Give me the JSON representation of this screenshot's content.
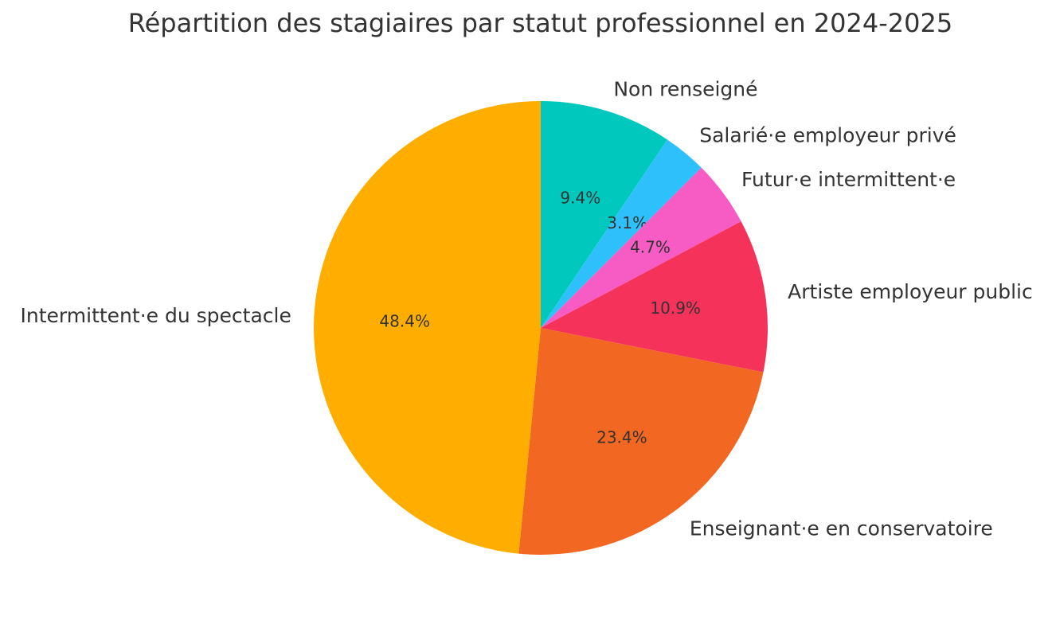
{
  "chart_data": {
    "type": "pie",
    "title": "Répartition des stagiaires par statut professionnel en 2024-2025",
    "start_angle_deg": 90,
    "direction": "clockwise",
    "slices": [
      {
        "label": "Non renseigné",
        "value": 9.4,
        "pct_label": "9.4%",
        "color": "#00C8BD"
      },
      {
        "label": "Salarié·e employeur privé",
        "value": 3.1,
        "pct_label": "3.1%",
        "color": "#2EC0FA"
      },
      {
        "label": "Futur·e intermittent·e",
        "value": 4.7,
        "pct_label": "4.7%",
        "color": "#F75BC4"
      },
      {
        "label": "Artiste employeur public",
        "value": 10.9,
        "pct_label": "10.9%",
        "color": "#F4325A"
      },
      {
        "label": "Enseignant·e en conservatoire",
        "value": 23.4,
        "pct_label": "23.4%",
        "color": "#F26822"
      },
      {
        "label": "Intermittent·e du spectacle",
        "value": 48.4,
        "pct_label": "48.4%",
        "color": "#FFAE00"
      }
    ]
  }
}
